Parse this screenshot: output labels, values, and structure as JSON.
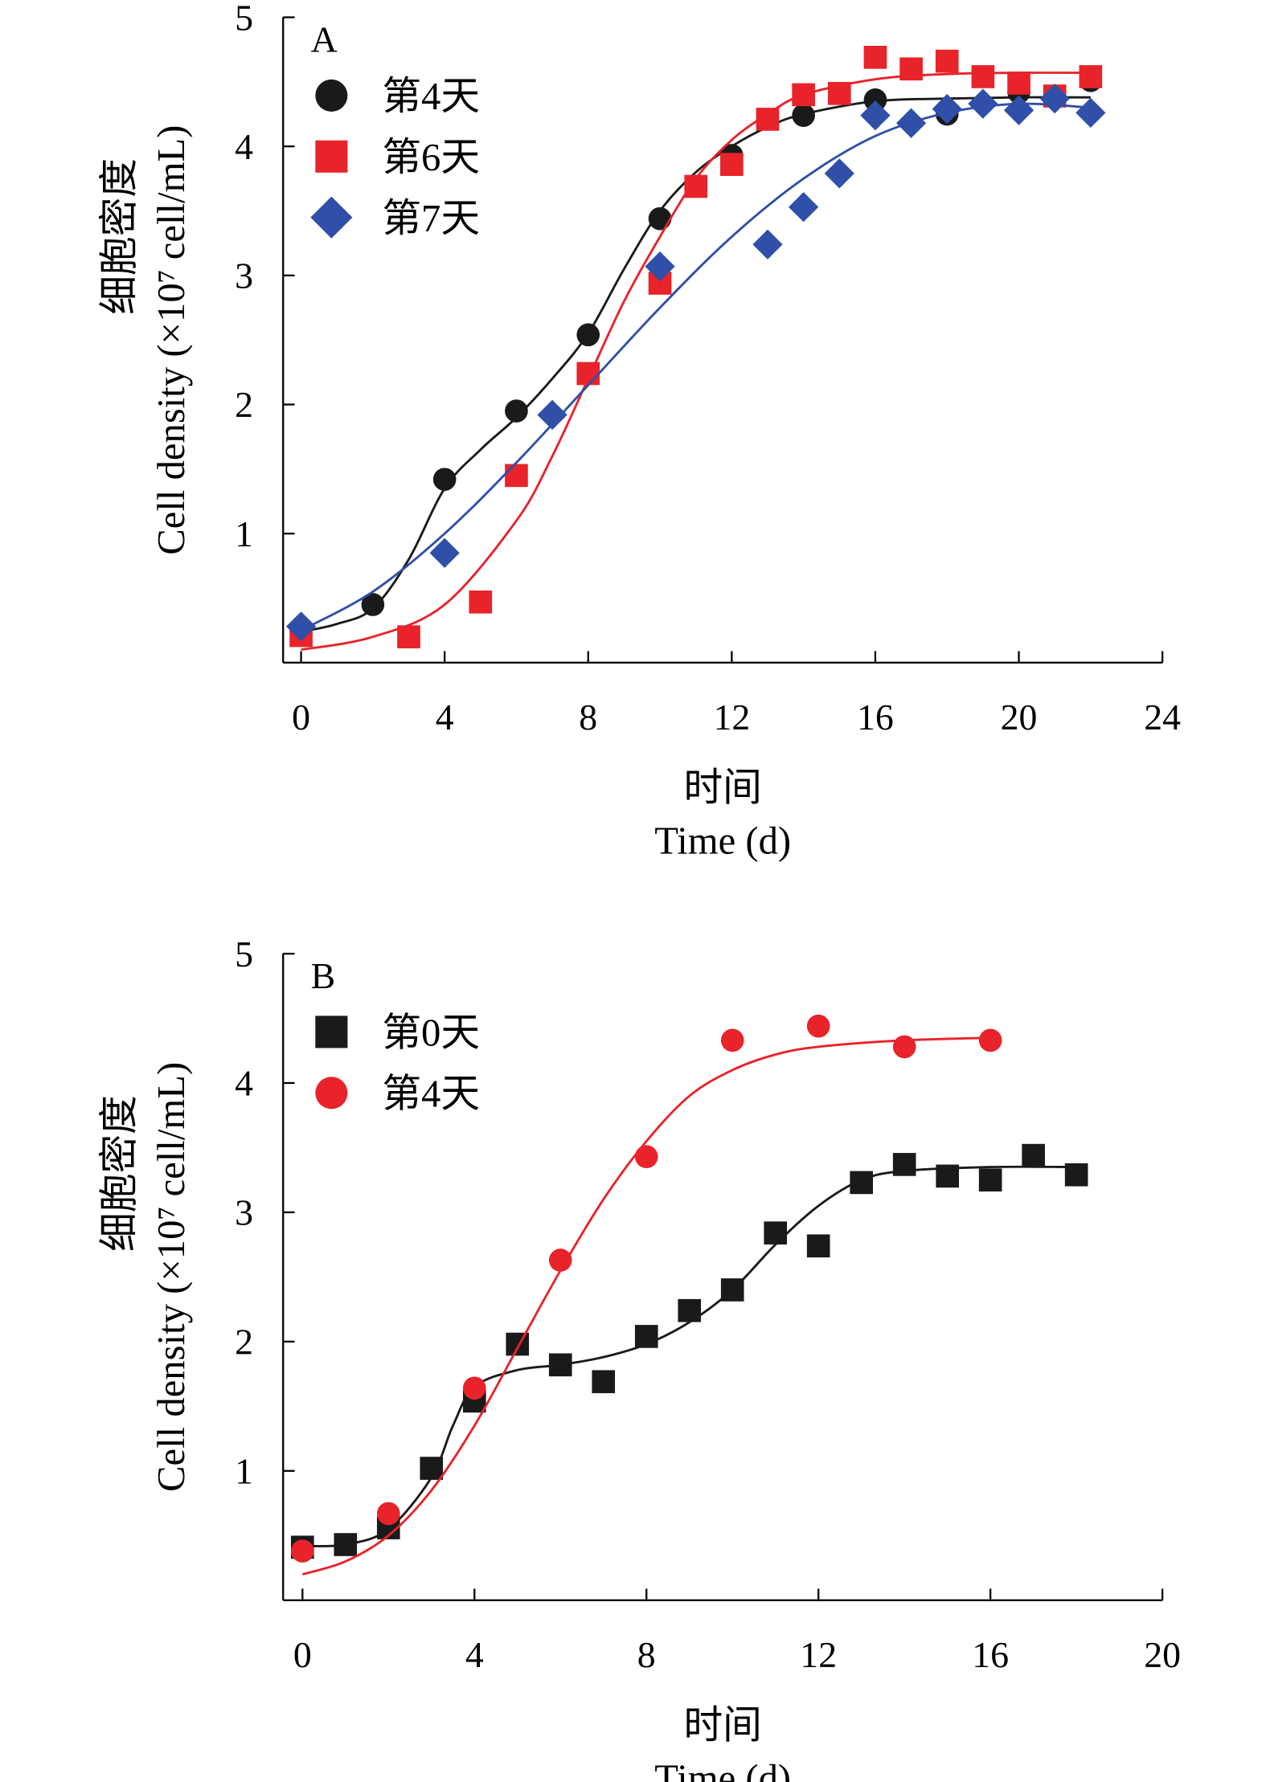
{
  "chart_data": [
    {
      "type": "scatter",
      "panel_label": "A",
      "ylabel_cn": "细胞密度",
      "ylabel_en": "Cell density (×10⁷ cell/mL)",
      "xlabel_cn": "时间",
      "xlabel_en": "Time (d)",
      "xlim": [
        -0.5,
        24
      ],
      "ylim": [
        0,
        5
      ],
      "xticks": [
        0,
        4,
        8,
        12,
        16,
        20,
        24
      ],
      "yticks": [
        1,
        2,
        3,
        4,
        5
      ],
      "grid": false,
      "legend_placement": "top-left",
      "series": [
        {
          "name": "第4天",
          "marker": "circle",
          "color": "#1a1a1a",
          "x": [
            0,
            2,
            4,
            6,
            8,
            10,
            12,
            14,
            16,
            18,
            20,
            22
          ],
          "y": [
            0.26,
            0.45,
            1.42,
            1.95,
            2.54,
            3.44,
            3.93,
            4.24,
            4.36,
            4.25,
            4.42,
            4.51
          ],
          "fit_x": [
            0,
            1,
            2,
            3,
            4,
            5,
            6,
            7,
            8,
            9,
            10,
            11,
            12,
            13,
            14,
            16,
            18,
            20,
            22
          ],
          "fit_y": [
            0.24,
            0.3,
            0.42,
            0.8,
            1.35,
            1.65,
            1.9,
            2.2,
            2.55,
            3.05,
            3.5,
            3.8,
            4.0,
            4.15,
            4.25,
            4.35,
            4.37,
            4.38,
            4.38
          ]
        },
        {
          "name": "第6天",
          "marker": "square",
          "color": "#e8232a",
          "x": [
            0,
            3,
            5,
            6,
            8,
            10,
            11,
            12,
            13,
            14,
            15,
            16,
            17,
            18,
            19,
            20,
            21,
            22
          ],
          "y": [
            0.21,
            0.2,
            0.47,
            1.45,
            2.24,
            2.94,
            3.69,
            3.86,
            4.21,
            4.4,
            4.41,
            4.69,
            4.6,
            4.66,
            4.54,
            4.49,
            4.39,
            4.54
          ],
          "fit_x": [
            0,
            2,
            4,
            6,
            7,
            8,
            9,
            10,
            11,
            12,
            13,
            14,
            16,
            18,
            20,
            22
          ],
          "fit_y": [
            0.1,
            0.2,
            0.45,
            1.1,
            1.6,
            2.2,
            2.8,
            3.3,
            3.75,
            4.05,
            4.25,
            4.4,
            4.52,
            4.56,
            4.57,
            4.57
          ]
        },
        {
          "name": "第7天",
          "marker": "diamond",
          "color": "#2f4fa8",
          "x": [
            0,
            4,
            7,
            10,
            13,
            14,
            15,
            16,
            17,
            18,
            19,
            20,
            21,
            22
          ],
          "y": [
            0.28,
            0.85,
            1.92,
            3.07,
            3.24,
            3.53,
            3.79,
            4.24,
            4.18,
            4.29,
            4.33,
            4.28,
            4.37,
            4.26
          ],
          "fit_x": [
            0,
            2,
            4,
            6,
            8,
            10,
            12,
            14,
            16,
            18,
            20,
            22
          ],
          "fit_y": [
            0.25,
            0.55,
            1.0,
            1.55,
            2.15,
            2.75,
            3.3,
            3.75,
            4.08,
            4.26,
            4.33,
            4.3
          ]
        }
      ]
    },
    {
      "type": "scatter",
      "panel_label": "B",
      "ylabel_cn": "细胞密度",
      "ylabel_en": "Cell density (×10⁷ cell/mL)",
      "xlabel_cn": "时间",
      "xlabel_en": "Time (d)",
      "xlim": [
        -0.45,
        20
      ],
      "ylim": [
        0,
        5
      ],
      "xticks": [
        0,
        4,
        8,
        12,
        16,
        20
      ],
      "yticks": [
        1,
        2,
        3,
        4,
        5
      ],
      "grid": false,
      "legend_placement": "top-left",
      "series": [
        {
          "name": "第0天",
          "marker": "square",
          "color": "#1a1a1a",
          "x": [
            0,
            1,
            2,
            3,
            4,
            5,
            6,
            7,
            8,
            9,
            10,
            11,
            12,
            13,
            14,
            15,
            16,
            17,
            18
          ],
          "y": [
            0.41,
            0.43,
            0.56,
            1.02,
            1.54,
            1.98,
            1.82,
            1.69,
            2.04,
            2.24,
            2.4,
            2.84,
            2.74,
            3.23,
            3.37,
            3.28,
            3.25,
            3.44,
            3.29
          ],
          "fit_x": [
            0,
            1,
            2,
            3,
            3.5,
            4,
            5,
            6,
            7,
            8,
            9,
            10,
            11,
            12,
            13,
            14,
            16,
            18
          ],
          "fit_y": [
            0.42,
            0.43,
            0.55,
            0.95,
            1.35,
            1.65,
            1.78,
            1.82,
            1.88,
            1.98,
            2.15,
            2.4,
            2.75,
            3.05,
            3.25,
            3.32,
            3.35,
            3.35
          ]
        },
        {
          "name": "第4天",
          "marker": "circle",
          "color": "#e8232a",
          "x": [
            0,
            2,
            4,
            6,
            8,
            10,
            12,
            14,
            16
          ],
          "y": [
            0.38,
            0.67,
            1.64,
            2.63,
            3.43,
            4.33,
            4.44,
            4.28,
            4.33
          ],
          "fit_x": [
            0,
            1,
            2,
            3,
            4,
            5,
            6,
            7,
            8,
            9,
            10,
            11,
            12,
            14,
            16
          ],
          "fit_y": [
            0.2,
            0.3,
            0.5,
            0.85,
            1.35,
            1.95,
            2.55,
            3.1,
            3.55,
            3.9,
            4.1,
            4.22,
            4.28,
            4.33,
            4.35
          ]
        }
      ]
    }
  ]
}
